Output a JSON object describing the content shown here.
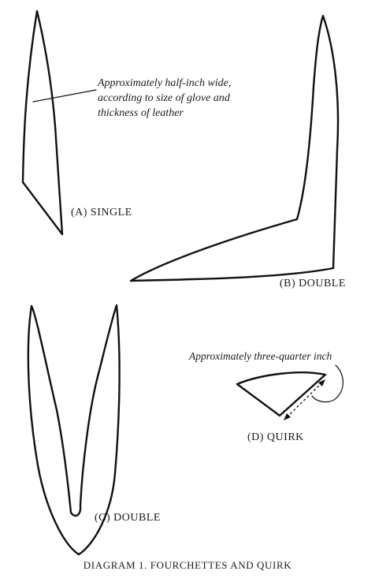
{
  "annotations": {
    "single_width_note": [
      "Approximately half-inch wide,",
      "according to size of glove and",
      "thickness of leather"
    ],
    "quirk_note": "Approximately three-quarter inch"
  },
  "labels": {
    "single": "(A) SINGLE",
    "double_b": "(B) DOUBLE",
    "double_c": "(C) DOUBLE",
    "quirk": "(D) QUIRK"
  },
  "caption": "DIAGRAM 1. FOURCHETTES AND QUIRK",
  "colors": {
    "ink": "#111111",
    "paper": "#ffffff"
  }
}
